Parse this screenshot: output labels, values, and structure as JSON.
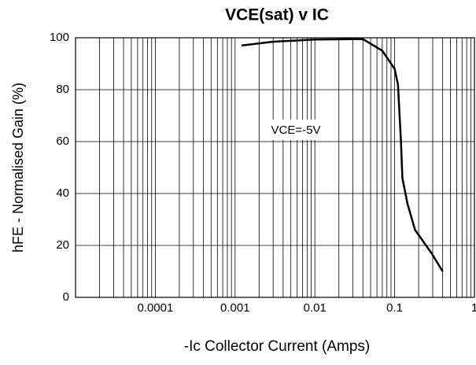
{
  "chart_data": {
    "type": "line",
    "title": "VCE(sat) v IC",
    "xlabel": "-Ic  Collector Current (Amps)",
    "ylabel": "hFE - Normalised Gain (%)",
    "annotation": "VCE=-5V",
    "x": [
      0.0012,
      0.003,
      0.01,
      0.04,
      0.07,
      0.1,
      0.11,
      0.12,
      0.125,
      0.145,
      0.18,
      0.29,
      0.4
    ],
    "series": [
      {
        "name": "VCE=-5V",
        "color": "#000000",
        "values": [
          97,
          98.5,
          99.3,
          99.5,
          95,
          88,
          82,
          60,
          46,
          36,
          26,
          17,
          10
        ]
      }
    ],
    "xlim": [
      1e-05,
      1
    ],
    "xscale": "log",
    "xticks": [
      0.0001,
      0.001,
      0.01,
      0.1,
      1
    ],
    "ylim": [
      0,
      100
    ],
    "yticks": [
      0,
      20,
      40,
      60,
      80,
      100
    ],
    "grid": true
  }
}
